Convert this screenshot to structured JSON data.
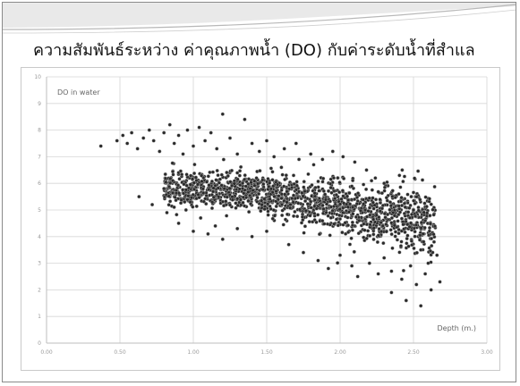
{
  "slide": {
    "title": "ความสัมพันธ์ระหว่าง ค่าคุณภาพน้ำ (DO) กับค่าระดับน้ำที่สำแล"
  },
  "colors": {
    "point": "#2a2a2a",
    "point_edge": "#bbbbbb",
    "grid": "#d6d6d6",
    "banner_light": "#e9e9e9",
    "banner_line": "#b8b8b8"
  },
  "chart_data": {
    "type": "scatter",
    "xlabel": "Depth (m.)",
    "ylabel": "DO in water",
    "xlim": [
      0,
      3
    ],
    "ylim": [
      0,
      10
    ],
    "x_ticks": [
      "0.00",
      "0.50",
      "1.00",
      "1.50",
      "2.00",
      "2.50",
      "3.00"
    ],
    "y_ticks": [
      "0",
      "1",
      "2",
      "3",
      "4",
      "5",
      "6",
      "7",
      "8",
      "9",
      "10"
    ],
    "grid": true,
    "series": [
      {
        "points": [
          [
            0.37,
            7.4
          ],
          [
            0.48,
            7.6
          ],
          [
            0.52,
            7.8
          ],
          [
            0.55,
            7.5
          ],
          [
            0.58,
            7.9
          ],
          [
            0.62,
            7.3
          ],
          [
            0.66,
            7.7
          ],
          [
            0.7,
            8.0
          ],
          [
            0.73,
            7.6
          ],
          [
            0.77,
            7.2
          ],
          [
            0.8,
            7.9
          ],
          [
            0.84,
            8.2
          ],
          [
            0.87,
            7.5
          ],
          [
            0.9,
            7.8
          ],
          [
            0.93,
            7.1
          ],
          [
            0.96,
            8.0
          ],
          [
            1.0,
            7.4
          ],
          [
            1.04,
            8.1
          ],
          [
            1.08,
            7.6
          ],
          [
            1.12,
            7.9
          ],
          [
            1.16,
            7.3
          ],
          [
            1.2,
            8.6
          ],
          [
            1.25,
            7.7
          ],
          [
            1.3,
            7.1
          ],
          [
            1.35,
            8.4
          ],
          [
            1.4,
            7.5
          ],
          [
            1.45,
            7.2
          ],
          [
            1.5,
            7.6
          ],
          [
            1.55,
            7.0
          ],
          [
            1.62,
            7.3
          ],
          [
            1.7,
            7.5
          ],
          [
            1.8,
            7.1
          ],
          [
            1.88,
            6.9
          ],
          [
            1.95,
            7.2
          ],
          [
            2.02,
            7.0
          ],
          [
            2.1,
            6.8
          ],
          [
            2.18,
            6.5
          ],
          [
            2.24,
            6.2
          ],
          [
            0.63,
            5.5
          ],
          [
            0.72,
            5.2
          ],
          [
            0.8,
            5.8
          ],
          [
            0.82,
            4.9
          ],
          [
            0.86,
            6.1
          ],
          [
            0.9,
            4.5
          ],
          [
            0.95,
            5.0
          ],
          [
            1.0,
            4.2
          ],
          [
            1.05,
            4.7
          ],
          [
            1.1,
            4.1
          ],
          [
            1.15,
            4.4
          ],
          [
            1.2,
            3.9
          ],
          [
            1.3,
            4.3
          ],
          [
            1.4,
            4.0
          ],
          [
            1.5,
            4.2
          ],
          [
            1.65,
            3.7
          ],
          [
            1.75,
            3.4
          ],
          [
            1.85,
            3.1
          ],
          [
            1.92,
            2.8
          ],
          [
            2.0,
            3.3
          ],
          [
            2.08,
            2.9
          ],
          [
            2.12,
            2.5
          ],
          [
            2.2,
            3.0
          ],
          [
            2.26,
            2.6
          ],
          [
            2.3,
            3.2
          ],
          [
            2.35,
            2.7
          ],
          [
            2.42,
            2.4
          ],
          [
            2.48,
            2.9
          ],
          [
            2.52,
            2.2
          ],
          [
            2.58,
            2.6
          ],
          [
            2.62,
            2.0
          ],
          [
            2.68,
            2.3
          ],
          [
            2.45,
            1.6
          ],
          [
            2.55,
            1.4
          ],
          [
            2.35,
            1.9
          ],
          [
            1.6,
            6.6
          ],
          [
            1.72,
            6.9
          ],
          [
            1.82,
            6.7
          ],
          [
            2.3,
            6.0
          ],
          [
            2.4,
            5.6
          ],
          [
            2.5,
            5.0
          ],
          [
            2.58,
            4.6
          ],
          [
            2.64,
            3.8
          ],
          [
            2.66,
            3.3
          ],
          [
            2.6,
            3.0
          ],
          [
            2.55,
            3.5
          ]
        ]
      }
    ]
  }
}
